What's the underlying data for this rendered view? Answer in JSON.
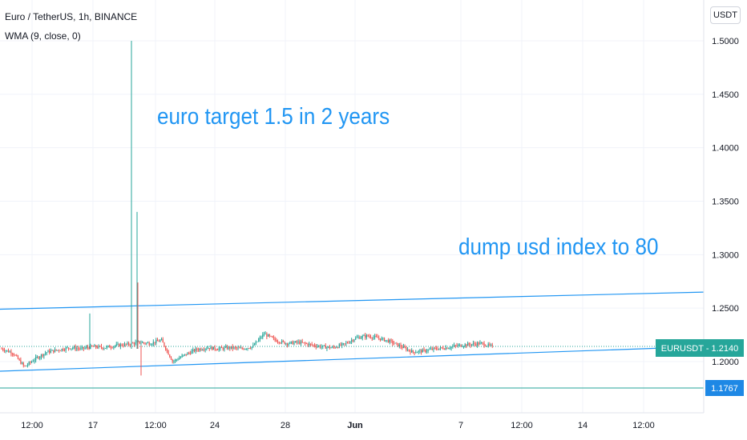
{
  "header": {
    "symbol_line": "Euro / TetherUS, 1h, BINANCE",
    "indicator_line": "WMA (9, close, 0)"
  },
  "currency_button": "USDT",
  "annotations": {
    "text_1": "euro target 1.5 in 2 years",
    "text_2": "dump usd index to 80"
  },
  "colors": {
    "up_candle": "#26a69a",
    "down_candle": "#ef5350",
    "trendline": "#2196f3",
    "price_label_bg": "#26a69a",
    "level_label_bg": "#1e88e5"
  },
  "chart_data": {
    "type": "candlestick",
    "symbol": "EURUSDT",
    "price_axis": {
      "ticks": [
        "1.5000",
        "1.4500",
        "1.4000",
        "1.3500",
        "1.3000",
        "1.2500",
        "1.2000"
      ],
      "tick_values": [
        1.5,
        1.45,
        1.4,
        1.35,
        1.3,
        1.25,
        1.2
      ]
    },
    "time_axis": {
      "ticks": [
        "12:00",
        "17",
        "12:00",
        "24",
        "28",
        "Jun",
        "7",
        "12:00",
        "14",
        "12:00"
      ],
      "bold_ticks": [
        "Jun"
      ]
    },
    "last_price": {
      "label": "EURUSDT",
      "value": "1.2140"
    },
    "horizontal_level": {
      "value": "1.1767"
    },
    "price_series": {
      "approx_close": [
        1.212,
        1.208,
        1.195,
        1.203,
        1.209,
        1.211,
        1.213,
        1.212,
        1.214,
        1.213,
        1.215,
        1.216,
        1.218,
        1.217,
        1.22,
        1.2,
        1.206,
        1.211,
        1.213,
        1.212,
        1.213,
        1.212,
        1.214,
        1.226,
        1.22,
        1.217,
        1.218,
        1.216,
        1.214,
        1.213,
        1.216,
        1.222,
        1.224,
        1.222,
        1.219,
        1.214,
        1.209,
        1.21,
        1.212,
        1.213,
        1.215,
        1.216,
        1.217,
        1.214
      ],
      "spike_highs": [
        {
          "near": "17",
          "high": 1.245
        },
        {
          "near": "17",
          "high": 1.5
        },
        {
          "near": "17",
          "high": 1.34
        },
        {
          "near": "17",
          "high": 1.274
        }
      ]
    },
    "trendlines": [
      {
        "color": "#2196f3",
        "from_price": 1.249,
        "to_price": 1.265
      },
      {
        "color": "#2196f3",
        "from_price": 1.191,
        "to_price": 1.214
      }
    ]
  }
}
